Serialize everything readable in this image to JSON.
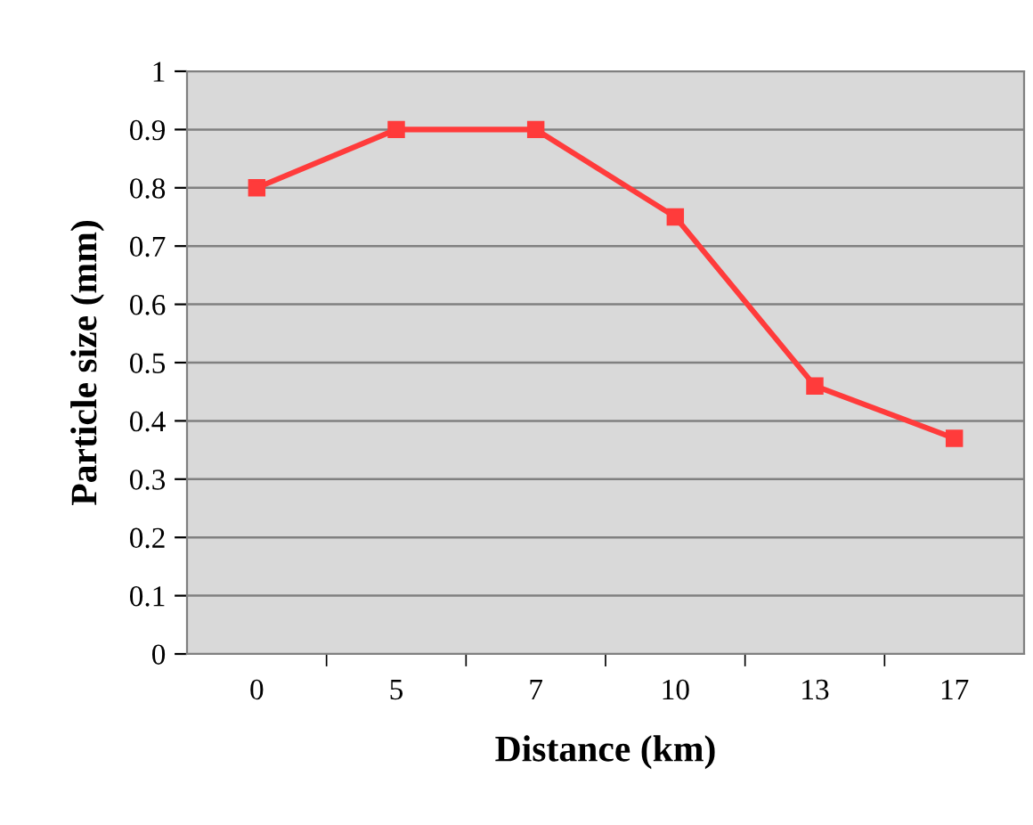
{
  "chart_data": {
    "type": "line",
    "xlabel": "Distance (km)",
    "ylabel": "Particle size (mm)",
    "categories": [
      "0",
      "5",
      "7",
      "10",
      "13",
      "17"
    ],
    "series": [
      {
        "color": "#ff3b3b",
        "values": [
          0.8,
          0.9,
          0.9,
          0.75,
          0.46,
          0.37
        ]
      }
    ],
    "ylim": [
      0,
      1
    ],
    "yticks": [
      0,
      0.1,
      0.2,
      0.3,
      0.4,
      0.5,
      0.6,
      0.7,
      0.8,
      0.9,
      1
    ],
    "grid": "y",
    "marker": "square",
    "line_style": "solid",
    "legend": false
  }
}
